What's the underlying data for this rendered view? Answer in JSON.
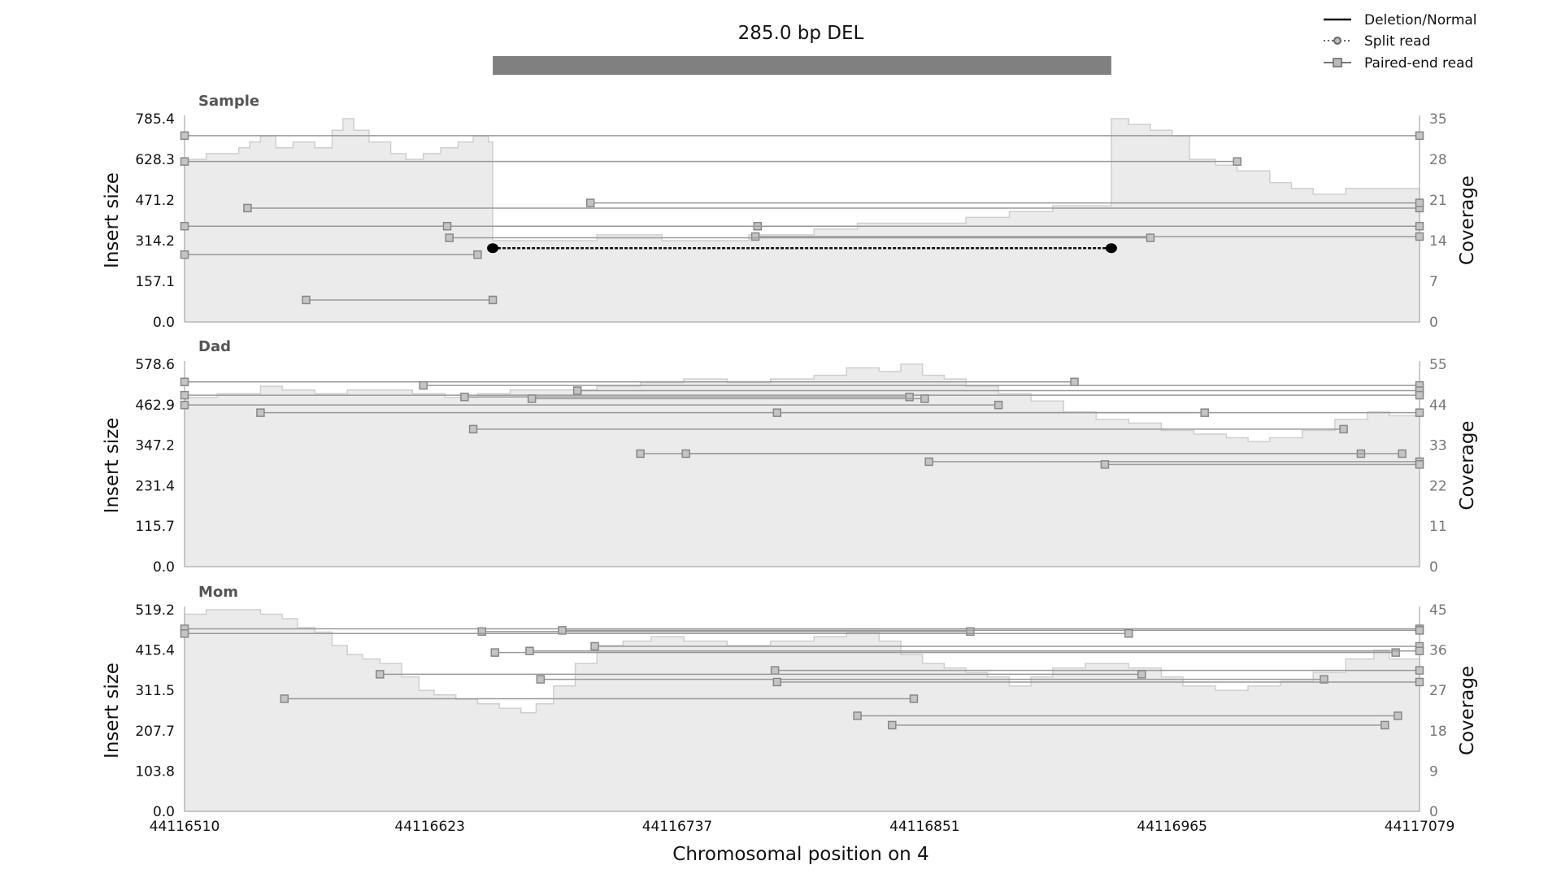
{
  "chart_data": {
    "type": "area",
    "title": "285.0 bp DEL",
    "variant_region": {
      "start": 44116652,
      "end": 44116937
    },
    "xlabel": "Chromosomal position on 4",
    "xlim": [
      44116510,
      44117079
    ],
    "xticks": [
      "44116510",
      "44116623",
      "44116737",
      "44116851",
      "44116965",
      "44117079"
    ],
    "legend": {
      "position": "top-right",
      "entries": [
        "Deletion/Normal",
        "Split read",
        "Paired-end read"
      ]
    },
    "colors": {
      "coverage_fill": "#ebebeb",
      "coverage_line": "#cfcfcf",
      "read": "#888888",
      "split": "#111111",
      "deletion_bar": "#808080"
    },
    "panels": [
      {
        "name": "Sample",
        "ylabel_left": "Insert size",
        "ylabel_right": "Coverage",
        "yticks_left": [
          "0.0",
          "157.1",
          "314.2",
          "471.2",
          "628.3",
          "785.4"
        ],
        "yticks_right": [
          "0",
          "7",
          "14",
          "21",
          "28",
          "35"
        ],
        "ylim_left": [
          0,
          785.4
        ],
        "ylim_right": [
          0,
          35
        ],
        "coverage": [
          [
            44116510,
            28
          ],
          [
            44116520,
            29
          ],
          [
            44116530,
            29
          ],
          [
            44116535,
            30
          ],
          [
            44116540,
            31
          ],
          [
            44116545,
            32
          ],
          [
            44116552,
            30
          ],
          [
            44116560,
            31
          ],
          [
            44116570,
            30
          ],
          [
            44116578,
            33
          ],
          [
            44116583,
            35
          ],
          [
            44116588,
            33
          ],
          [
            44116595,
            31
          ],
          [
            44116605,
            29
          ],
          [
            44116612,
            28
          ],
          [
            44116620,
            29
          ],
          [
            44116628,
            30
          ],
          [
            44116636,
            31
          ],
          [
            44116643,
            32
          ],
          [
            44116650,
            31
          ],
          [
            44116652,
            14
          ],
          [
            44116680,
            14
          ],
          [
            44116700,
            15
          ],
          [
            44116730,
            14
          ],
          [
            44116770,
            15
          ],
          [
            44116800,
            16
          ],
          [
            44116820,
            17
          ],
          [
            44116850,
            17
          ],
          [
            44116870,
            18
          ],
          [
            44116890,
            19
          ],
          [
            44116910,
            20
          ],
          [
            44116930,
            20
          ],
          [
            44116937,
            35
          ],
          [
            44116945,
            34
          ],
          [
            44116955,
            33
          ],
          [
            44116965,
            32
          ],
          [
            44116973,
            28
          ],
          [
            44116985,
            27
          ],
          [
            44116995,
            26
          ],
          [
            44117010,
            24
          ],
          [
            44117020,
            23
          ],
          [
            44117030,
            22
          ],
          [
            44117045,
            23
          ],
          [
            44117060,
            23
          ],
          [
            44117079,
            23
          ]
        ],
        "split_reads": [
          {
            "start": 44116652,
            "end": 44116937,
            "y": 285
          }
        ],
        "paired_reads": [
          {
            "start": 44116510,
            "end": 44117079,
            "y": 720
          },
          {
            "start": 44116510,
            "end": 44116995,
            "y": 620
          },
          {
            "start": 44116539,
            "end": 44117079,
            "y": 440
          },
          {
            "start": 44116697,
            "end": 44117079,
            "y": 460
          },
          {
            "start": 44116510,
            "end": 44116774,
            "y": 370
          },
          {
            "start": 44116631,
            "end": 44117079,
            "y": 370
          },
          {
            "start": 44116773,
            "end": 44117079,
            "y": 330
          },
          {
            "start": 44116632,
            "end": 44116955,
            "y": 325
          },
          {
            "start": 44116510,
            "end": 44116645,
            "y": 260
          },
          {
            "start": 44116566,
            "end": 44116652,
            "y": 85
          }
        ]
      },
      {
        "name": "Dad",
        "ylabel_left": "Insert size",
        "ylabel_right": "Coverage",
        "yticks_left": [
          "0.0",
          "115.7",
          "231.4",
          "347.2",
          "462.9",
          "578.6"
        ],
        "yticks_right": [
          "0",
          "11",
          "22",
          "33",
          "44",
          "55"
        ],
        "ylim_left": [
          0,
          578.6
        ],
        "ylim_right": [
          0,
          55
        ],
        "coverage": [
          [
            44116510,
            46
          ],
          [
            44116525,
            47
          ],
          [
            44116535,
            47
          ],
          [
            44116545,
            49
          ],
          [
            44116555,
            48
          ],
          [
            44116570,
            47
          ],
          [
            44116585,
            48
          ],
          [
            44116600,
            48
          ],
          [
            44116615,
            47
          ],
          [
            44116630,
            46
          ],
          [
            44116645,
            47
          ],
          [
            44116660,
            48
          ],
          [
            44116680,
            48
          ],
          [
            44116700,
            49
          ],
          [
            44116720,
            50
          ],
          [
            44116740,
            51
          ],
          [
            44116760,
            50
          ],
          [
            44116780,
            51
          ],
          [
            44116800,
            52
          ],
          [
            44116815,
            54
          ],
          [
            44116830,
            53
          ],
          [
            44116840,
            55
          ],
          [
            44116850,
            52
          ],
          [
            44116860,
            51
          ],
          [
            44116870,
            49
          ],
          [
            44116885,
            47
          ],
          [
            44116900,
            45
          ],
          [
            44116915,
            42
          ],
          [
            44116930,
            40
          ],
          [
            44116945,
            39
          ],
          [
            44116960,
            37
          ],
          [
            44116975,
            36
          ],
          [
            44116990,
            35
          ],
          [
            44117000,
            34
          ],
          [
            44117010,
            35
          ],
          [
            44117025,
            37
          ],
          [
            44117040,
            40
          ],
          [
            44117055,
            42
          ],
          [
            44117065,
            41
          ],
          [
            44117079,
            43
          ]
        ],
        "paired_reads": [
          {
            "start": 44116510,
            "end": 44116920,
            "y": 528
          },
          {
            "start": 44116620,
            "end": 44117079,
            "y": 518
          },
          {
            "start": 44116691,
            "end": 44117079,
            "y": 503
          },
          {
            "start": 44116510,
            "end": 44117079,
            "y": 490
          },
          {
            "start": 44116639,
            "end": 44116844,
            "y": 485
          },
          {
            "start": 44116670,
            "end": 44116851,
            "y": 480
          },
          {
            "start": 44116510,
            "end": 44116885,
            "y": 462
          },
          {
            "start": 44116545,
            "end": 44117079,
            "y": 440
          },
          {
            "start": 44116783,
            "end": 44116980,
            "y": 440
          },
          {
            "start": 44116643,
            "end": 44117044,
            "y": 393
          },
          {
            "start": 44116720,
            "end": 44117052,
            "y": 323
          },
          {
            "start": 44116741,
            "end": 44117071,
            "y": 323
          },
          {
            "start": 44116853,
            "end": 44117079,
            "y": 300
          },
          {
            "start": 44116934,
            "end": 44117079,
            "y": 292
          }
        ]
      },
      {
        "name": "Mom",
        "ylabel_left": "Insert size",
        "ylabel_right": "Coverage",
        "yticks_left": [
          "0.0",
          "103.8",
          "207.7",
          "311.5",
          "415.4",
          "519.2"
        ],
        "yticks_right": [
          "0",
          "9",
          "18",
          "27",
          "36",
          "45"
        ],
        "ylim_left": [
          0,
          519.2
        ],
        "ylim_right": [
          0,
          45
        ],
        "coverage": [
          [
            44116510,
            44
          ],
          [
            44116520,
            45
          ],
          [
            44116530,
            45
          ],
          [
            44116545,
            44
          ],
          [
            44116555,
            43
          ],
          [
            44116562,
            41
          ],
          [
            44116570,
            40
          ],
          [
            44116578,
            37
          ],
          [
            44116585,
            35
          ],
          [
            44116592,
            34
          ],
          [
            44116600,
            33
          ],
          [
            44116610,
            30
          ],
          [
            44116618,
            27
          ],
          [
            44116625,
            26
          ],
          [
            44116635,
            25
          ],
          [
            44116645,
            24
          ],
          [
            44116655,
            23
          ],
          [
            44116665,
            22
          ],
          [
            44116672,
            24
          ],
          [
            44116680,
            28
          ],
          [
            44116690,
            33
          ],
          [
            44116700,
            37
          ],
          [
            44116712,
            38
          ],
          [
            44116725,
            39
          ],
          [
            44116740,
            38
          ],
          [
            44116760,
            37
          ],
          [
            44116780,
            38
          ],
          [
            44116800,
            39
          ],
          [
            44116815,
            40
          ],
          [
            44116830,
            38
          ],
          [
            44116840,
            35
          ],
          [
            44116850,
            33
          ],
          [
            44116860,
            32
          ],
          [
            44116870,
            31
          ],
          [
            44116880,
            30
          ],
          [
            44116890,
            28
          ],
          [
            44116900,
            30
          ],
          [
            44116910,
            32
          ],
          [
            44116925,
            33
          ],
          [
            44116945,
            32
          ],
          [
            44116960,
            30
          ],
          [
            44116970,
            28
          ],
          [
            44116985,
            27
          ],
          [
            44117000,
            28
          ],
          [
            44117015,
            29
          ],
          [
            44117030,
            31
          ],
          [
            44117045,
            34
          ],
          [
            44117058,
            36
          ],
          [
            44117065,
            34
          ],
          [
            44117079,
            37
          ]
        ],
        "paired_reads": [
          {
            "start": 44116510,
            "end": 44117079,
            "y": 470
          },
          {
            "start": 44116647,
            "end": 44116872,
            "y": 463
          },
          {
            "start": 44116684,
            "end": 44117079,
            "y": 466
          },
          {
            "start": 44116510,
            "end": 44116945,
            "y": 458
          },
          {
            "start": 44116699,
            "end": 44117079,
            "y": 425
          },
          {
            "start": 44116653,
            "end": 44117068,
            "y": 409
          },
          {
            "start": 44116669,
            "end": 44117079,
            "y": 413
          },
          {
            "start": 44116782,
            "end": 44117079,
            "y": 363
          },
          {
            "start": 44116600,
            "end": 44116951,
            "y": 353
          },
          {
            "start": 44116674,
            "end": 44117035,
            "y": 340
          },
          {
            "start": 44116783,
            "end": 44117079,
            "y": 333
          },
          {
            "start": 44116556,
            "end": 44116846,
            "y": 290
          },
          {
            "start": 44116820,
            "end": 44117069,
            "y": 246
          },
          {
            "start": 44116836,
            "end": 44117063,
            "y": 222
          }
        ]
      }
    ]
  }
}
